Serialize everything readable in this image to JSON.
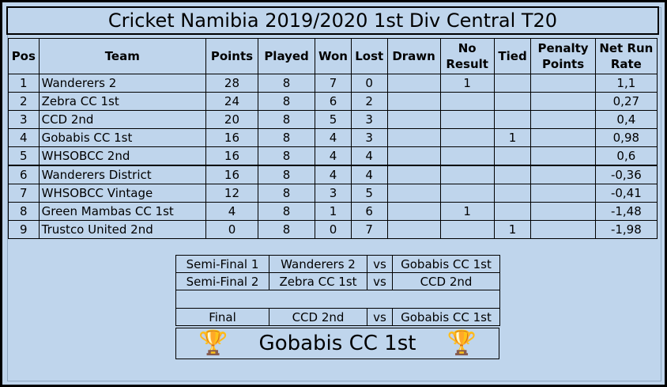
{
  "title": "Cricket Namibia 2019/2020 1st Div Central T20",
  "headers": [
    "Pos",
    "Team",
    "Points",
    "Played",
    "Won",
    "Lost",
    "Drawn",
    "No Result",
    "Tied",
    "Penalty Points",
    "Net Run Rate"
  ],
  "rows": [
    [
      "1",
      "Wanderers 2",
      "28",
      "8",
      "7",
      "0",
      "",
      "1",
      "",
      "",
      "1,1"
    ],
    [
      "2",
      "Zebra CC 1st",
      "24",
      "8",
      "6",
      "2",
      "",
      "",
      "",
      "",
      "0,27"
    ],
    [
      "3",
      "CCD 2nd",
      "20",
      "8",
      "5",
      "3",
      "",
      "",
      "",
      "",
      "0,4"
    ],
    [
      "4",
      "Gobabis CC 1st",
      "16",
      "8",
      "4",
      "3",
      "",
      "",
      "1",
      "",
      "0,98"
    ],
    [
      "5",
      "WHSOBCC 2nd",
      "16",
      "8",
      "4",
      "4",
      "",
      "",
      "",
      "",
      "0,6"
    ],
    [
      "6",
      "Wanderers District",
      "16",
      "8",
      "4",
      "4",
      "",
      "",
      "",
      "",
      "-0,36"
    ],
    [
      "7",
      "WHSOBCC Vintage",
      "12",
      "8",
      "3",
      "5",
      "",
      "",
      "",
      "",
      "-0,41"
    ],
    [
      "8",
      "Green Mambas CC 1st",
      "4",
      "8",
      "1",
      "6",
      "",
      "1",
      "",
      "",
      "-1,48"
    ],
    [
      "9",
      "Trustco United 2nd",
      "0",
      "8",
      "0",
      "7",
      "",
      "",
      "1",
      "",
      "-1,98"
    ]
  ],
  "bracket": {
    "sf1": {
      "label": "Semi-Final 1",
      "home": "Wanderers 2",
      "vs": "vs",
      "away": "Gobabis CC 1st"
    },
    "sf2": {
      "label": "Semi-Final 2",
      "home": "Zebra CC 1st",
      "vs": "vs",
      "away": "CCD 2nd"
    },
    "final": {
      "label": "Final",
      "home": "CCD 2nd",
      "vs": "vs",
      "away": "Gobabis CC 1st"
    },
    "winner": "Gobabis CC 1st"
  },
  "icons": {
    "trophy": "trophy-icon"
  },
  "colors": {
    "background": "#bfd5ec",
    "trophy": "#d4a017"
  }
}
